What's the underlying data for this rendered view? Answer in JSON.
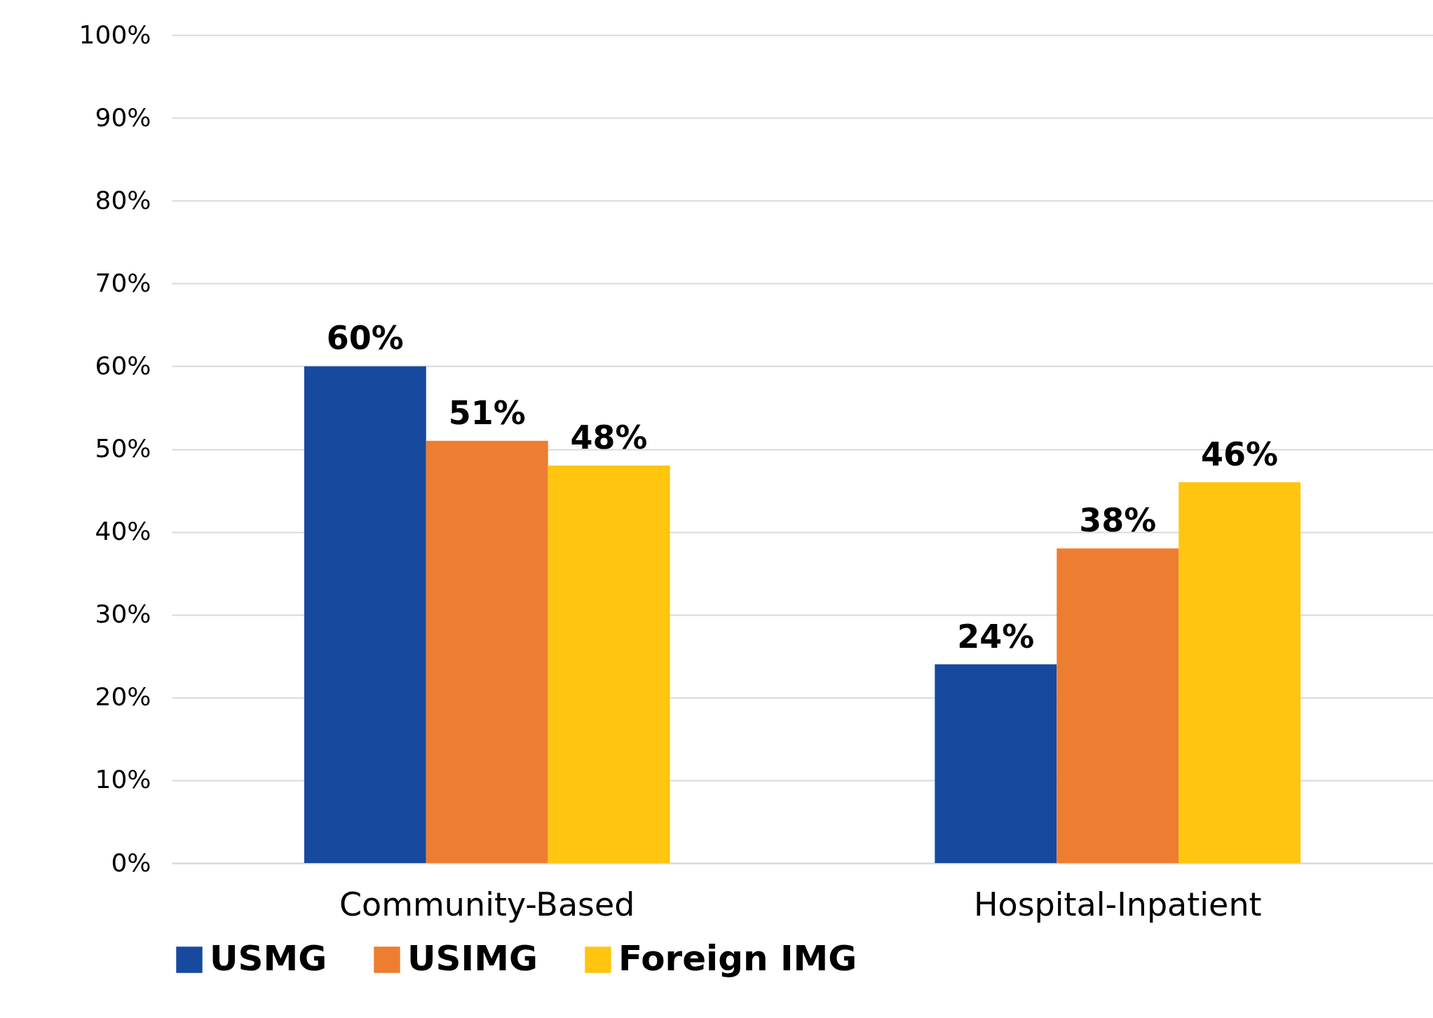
{
  "chart_data": {
    "type": "bar",
    "categories": [
      "Community-Based",
      "Hospital-Inpatient"
    ],
    "series": [
      {
        "name": "USMG",
        "color": "#174a9e",
        "values": [
          60,
          24
        ],
        "value_labels": [
          "60%",
          "24%"
        ]
      },
      {
        "name": "USIMG",
        "color": "#ed7d31",
        "values": [
          51,
          38
        ],
        "value_labels": [
          "51%",
          "38%"
        ]
      },
      {
        "name": "Foreign IMG",
        "color": "#ffc50f",
        "values": [
          48,
          46
        ],
        "value_labels": [
          "48%",
          "46%"
        ]
      }
    ],
    "ylim": [
      0,
      100
    ],
    "yticks": [
      {
        "value": 0,
        "label": "0%"
      },
      {
        "value": 10,
        "label": "10%"
      },
      {
        "value": 20,
        "label": "20%"
      },
      {
        "value": 30,
        "label": "30%"
      },
      {
        "value": 40,
        "label": "40%"
      },
      {
        "value": 50,
        "label": "50%"
      },
      {
        "value": 60,
        "label": "60%"
      },
      {
        "value": 70,
        "label": "70%"
      },
      {
        "value": 80,
        "label": "80%"
      },
      {
        "value": 90,
        "label": "90%"
      },
      {
        "value": 100,
        "label": "100%"
      }
    ],
    "grid": "y",
    "legend": "bottom"
  }
}
